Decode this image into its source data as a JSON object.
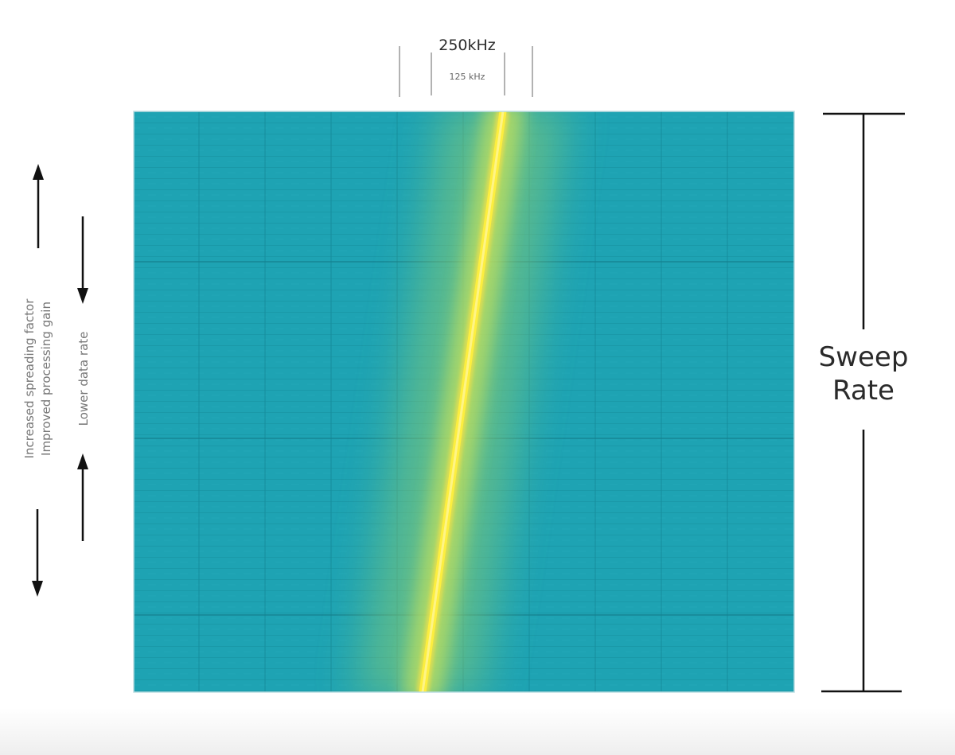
{
  "bandwidth": {
    "outer_label": "250kHz",
    "inner_label": "125 kHz"
  },
  "sweep": {
    "line1": "Sweep",
    "line2": "Rate"
  },
  "left_labels": {
    "spreading_line1": "Increased spreading factor",
    "spreading_line2": "Improved processing gain",
    "data_rate": "Lower data rate"
  },
  "colors": {
    "spectrogram_background": "#1ea3b3",
    "chirp": "#fbe93a",
    "glow": "#9fd26a",
    "annotation": "#111111"
  }
}
